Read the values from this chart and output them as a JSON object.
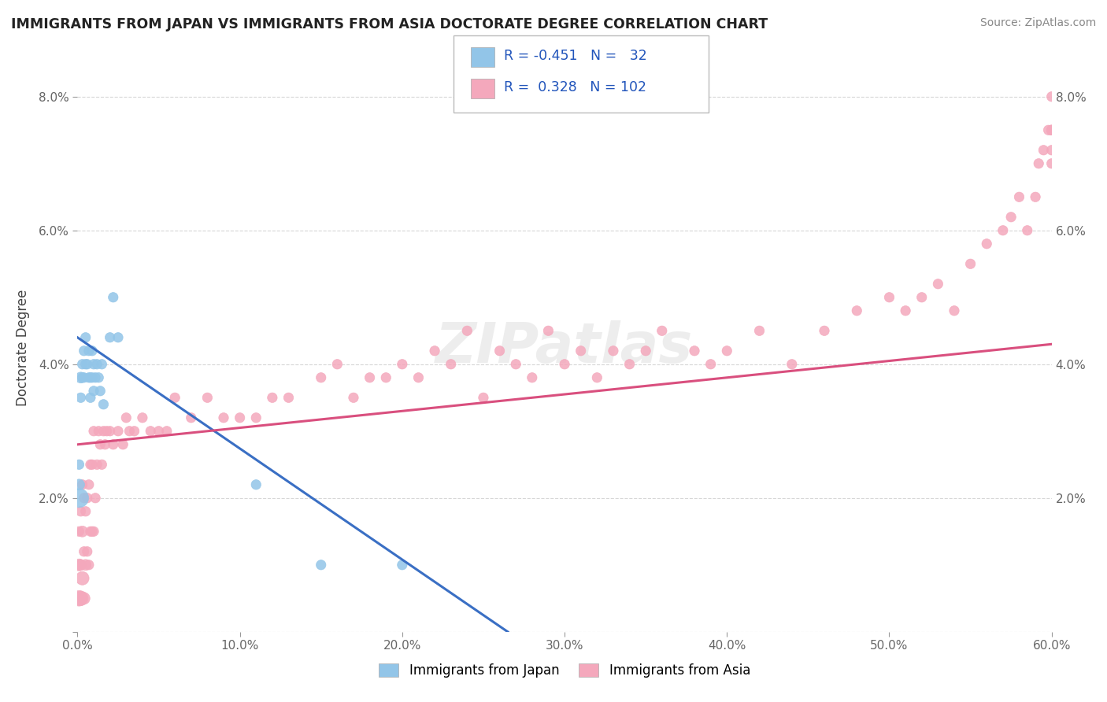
{
  "title": "IMMIGRANTS FROM JAPAN VS IMMIGRANTS FROM ASIA DOCTORATE DEGREE CORRELATION CHART",
  "source": "Source: ZipAtlas.com",
  "ylabel_label": "Doctorate Degree",
  "xmin": 0.0,
  "xmax": 0.6,
  "ymin": 0.0,
  "ymax": 0.085,
  "xtick_labels": [
    "0.0%",
    "10.0%",
    "20.0%",
    "30.0%",
    "40.0%",
    "50.0%",
    "60.0%"
  ],
  "xtick_values": [
    0.0,
    0.1,
    0.2,
    0.3,
    0.4,
    0.5,
    0.6
  ],
  "ytick_labels": [
    "",
    "2.0%",
    "4.0%",
    "6.0%",
    "8.0%"
  ],
  "ytick_values": [
    0.0,
    0.02,
    0.04,
    0.06,
    0.08
  ],
  "legend_bottom_labels": [
    "Immigrants from Japan",
    "Immigrants from Asia"
  ],
  "legend_top": {
    "japan_R": "-0.451",
    "japan_N": "32",
    "asia_R": "0.328",
    "asia_N": "102"
  },
  "japan_color": "#92c5e8",
  "asia_color": "#f4a8bc",
  "japan_line_color": "#3a6fc4",
  "asia_line_color": "#d94f7e",
  "watermark": "ZIPatlas",
  "japan_line_x0": 0.0,
  "japan_line_y0": 0.044,
  "japan_line_x1": 0.265,
  "japan_line_y1": 0.0,
  "asia_line_x0": 0.0,
  "asia_line_y0": 0.028,
  "asia_line_x1": 0.6,
  "asia_line_y1": 0.043,
  "japan_scatter_x": [
    0.001,
    0.001,
    0.001,
    0.002,
    0.002,
    0.003,
    0.003,
    0.004,
    0.004,
    0.005,
    0.005,
    0.006,
    0.007,
    0.007,
    0.008,
    0.008,
    0.009,
    0.009,
    0.01,
    0.01,
    0.011,
    0.012,
    0.013,
    0.014,
    0.015,
    0.016,
    0.02,
    0.022,
    0.025,
    0.11,
    0.15,
    0.2
  ],
  "japan_scatter_y": [
    0.02,
    0.022,
    0.025,
    0.038,
    0.035,
    0.038,
    0.04,
    0.042,
    0.038,
    0.04,
    0.044,
    0.04,
    0.038,
    0.042,
    0.035,
    0.038,
    0.038,
    0.042,
    0.036,
    0.04,
    0.038,
    0.04,
    0.038,
    0.036,
    0.04,
    0.034,
    0.044,
    0.05,
    0.044,
    0.022,
    0.01,
    0.01
  ],
  "japan_scatter_sizes": [
    300,
    100,
    80,
    100,
    80,
    80,
    80,
    80,
    80,
    80,
    80,
    80,
    80,
    80,
    80,
    80,
    80,
    80,
    80,
    80,
    80,
    80,
    80,
    80,
    80,
    80,
    80,
    80,
    80,
    80,
    80,
    80
  ],
  "asia_scatter_x": [
    0.001,
    0.001,
    0.001,
    0.002,
    0.002,
    0.002,
    0.003,
    0.003,
    0.003,
    0.004,
    0.004,
    0.004,
    0.005,
    0.005,
    0.006,
    0.006,
    0.007,
    0.007,
    0.008,
    0.008,
    0.009,
    0.009,
    0.01,
    0.01,
    0.011,
    0.012,
    0.013,
    0.014,
    0.015,
    0.016,
    0.017,
    0.018,
    0.02,
    0.022,
    0.025,
    0.028,
    0.03,
    0.032,
    0.035,
    0.04,
    0.045,
    0.05,
    0.055,
    0.06,
    0.07,
    0.08,
    0.09,
    0.1,
    0.11,
    0.12,
    0.13,
    0.15,
    0.16,
    0.17,
    0.18,
    0.19,
    0.2,
    0.21,
    0.22,
    0.23,
    0.24,
    0.25,
    0.26,
    0.27,
    0.28,
    0.29,
    0.3,
    0.31,
    0.32,
    0.33,
    0.34,
    0.35,
    0.36,
    0.38,
    0.39,
    0.4,
    0.42,
    0.44,
    0.46,
    0.48,
    0.5,
    0.51,
    0.52,
    0.53,
    0.54,
    0.55,
    0.56,
    0.57,
    0.575,
    0.58,
    0.585,
    0.59,
    0.592,
    0.595,
    0.598,
    0.6,
    0.6,
    0.6,
    0.6,
    0.6,
    0.6,
    0.6
  ],
  "asia_scatter_y": [
    0.005,
    0.01,
    0.015,
    0.005,
    0.01,
    0.018,
    0.008,
    0.015,
    0.022,
    0.005,
    0.012,
    0.02,
    0.01,
    0.018,
    0.012,
    0.02,
    0.01,
    0.022,
    0.015,
    0.025,
    0.015,
    0.025,
    0.015,
    0.03,
    0.02,
    0.025,
    0.03,
    0.028,
    0.025,
    0.03,
    0.028,
    0.03,
    0.03,
    0.028,
    0.03,
    0.028,
    0.032,
    0.03,
    0.03,
    0.032,
    0.03,
    0.03,
    0.03,
    0.035,
    0.032,
    0.035,
    0.032,
    0.032,
    0.032,
    0.035,
    0.035,
    0.038,
    0.04,
    0.035,
    0.038,
    0.038,
    0.04,
    0.038,
    0.042,
    0.04,
    0.045,
    0.035,
    0.042,
    0.04,
    0.038,
    0.045,
    0.04,
    0.042,
    0.038,
    0.042,
    0.04,
    0.042,
    0.045,
    0.042,
    0.04,
    0.042,
    0.045,
    0.04,
    0.045,
    0.048,
    0.05,
    0.048,
    0.05,
    0.052,
    0.048,
    0.055,
    0.058,
    0.06,
    0.062,
    0.065,
    0.06,
    0.065,
    0.07,
    0.072,
    0.075,
    0.075,
    0.07,
    0.075,
    0.072,
    0.08,
    0.075,
    0.075
  ],
  "asia_scatter_sizes": [
    200,
    120,
    80,
    180,
    100,
    80,
    150,
    100,
    80,
    120,
    80,
    80,
    100,
    80,
    80,
    80,
    80,
    80,
    80,
    80,
    80,
    80,
    80,
    80,
    80,
    80,
    80,
    80,
    80,
    80,
    80,
    80,
    80,
    80,
    80,
    80,
    80,
    80,
    80,
    80,
    80,
    80,
    80,
    80,
    80,
    80,
    80,
    80,
    80,
    80,
    80,
    80,
    80,
    80,
    80,
    80,
    80,
    80,
    80,
    80,
    80,
    80,
    80,
    80,
    80,
    80,
    80,
    80,
    80,
    80,
    80,
    80,
    80,
    80,
    80,
    80,
    80,
    80,
    80,
    80,
    80,
    80,
    80,
    80,
    80,
    80,
    80,
    80,
    80,
    80,
    80,
    80,
    80,
    80,
    80,
    80,
    80,
    80,
    80,
    80,
    80,
    80
  ]
}
